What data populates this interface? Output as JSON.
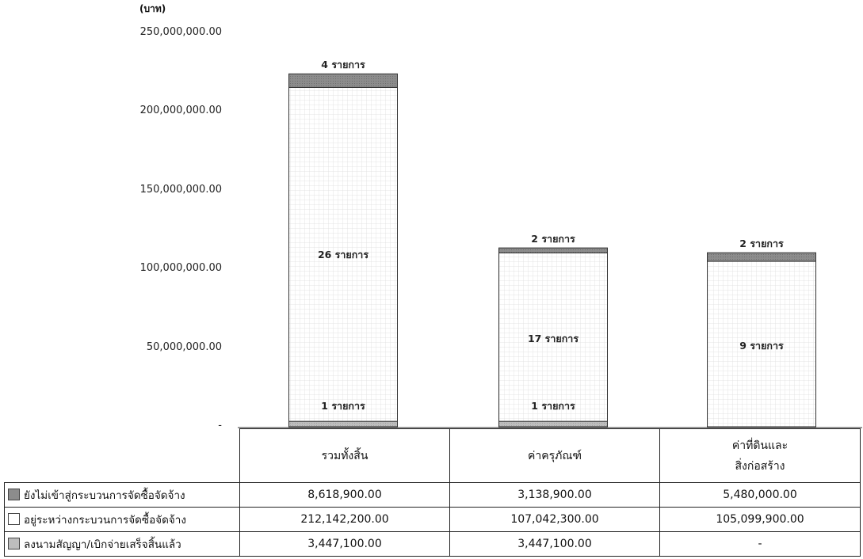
{
  "chart_data": {
    "type": "bar",
    "stacked": true,
    "title": "",
    "unit_label": "(บาท)",
    "ylim": [
      0,
      250000000
    ],
    "y_ticks": [
      {
        "value": 250000000,
        "label": "250,000,000.00"
      },
      {
        "value": 200000000,
        "label": "200,000,000.00"
      },
      {
        "value": 150000000,
        "label": "150,000,000.00"
      },
      {
        "value": 100000000,
        "label": "100,000,000.00"
      },
      {
        "value": 50000000,
        "label": "50,000,000.00"
      },
      {
        "value": 0,
        "label": "-"
      }
    ],
    "categories": [
      {
        "lines": [
          "รวมทั้งสิ้น"
        ]
      },
      {
        "lines": [
          "ค่าครุภัณฑ์"
        ]
      },
      {
        "lines": [
          "ค่าที่ดินและ",
          "สิ่งก่อสร้าง"
        ]
      }
    ],
    "series": [
      {
        "name": "ลงนามสัญญา/เบิกจ่ายเสร็จสิ้นแล้ว",
        "color": "#b8b8b8",
        "values": [
          3447100,
          3447100,
          0
        ],
        "display_values": [
          "3,447,100.00",
          "3,447,100.00",
          "-"
        ],
        "bar_labels": [
          "1 รายการ",
          "1 รายการ",
          ""
        ]
      },
      {
        "name": "อยู่ระหว่างกระบวนการจัดซื้อจัดจ้าง",
        "color": "#ffffff",
        "values": [
          212142200,
          107042300,
          105099900
        ],
        "display_values": [
          "212,142,200.00",
          "107,042,300.00",
          "105,099,900.00"
        ],
        "bar_labels": [
          "26 รายการ",
          "17 รายการ",
          "9 รายการ"
        ]
      },
      {
        "name": "ยังไม่เข้าสู่กระบวนการจัดซื้อจัดจ้าง",
        "color": "#8c8c8c",
        "values": [
          8618900,
          3138900,
          5480000
        ],
        "display_values": [
          "8,618,900.00",
          "3,138,900.00",
          "5,480,000.00"
        ],
        "bar_labels": [
          "4 รายการ",
          "2 รายการ",
          "2 รายการ"
        ]
      }
    ],
    "table_row_order": [
      2,
      1,
      0
    ]
  }
}
